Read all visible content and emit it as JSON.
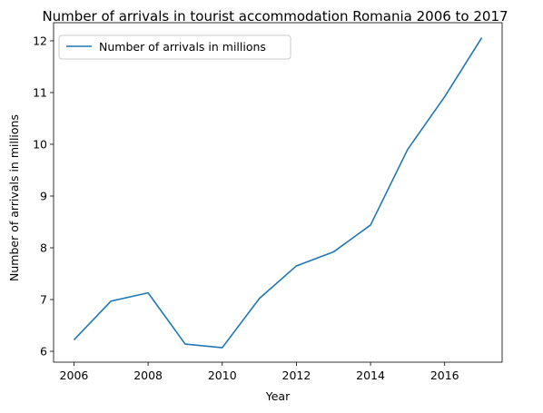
{
  "chart_data": {
    "type": "line",
    "title": "Number of arrivals in tourist accommodation Romania 2006 to 2017",
    "xlabel": "Year",
    "ylabel": "Number of arrivals in millions",
    "x": [
      2006,
      2007,
      2008,
      2009,
      2010,
      2011,
      2012,
      2013,
      2014,
      2015,
      2016,
      2017
    ],
    "series": [
      {
        "name": "Number of arrivals in millions",
        "color": "#1f77b4",
        "values": [
          6.22,
          6.97,
          7.13,
          6.14,
          6.07,
          7.02,
          7.65,
          7.92,
          8.44,
          9.9,
          10.92,
          12.06
        ]
      }
    ],
    "xticks": [
      "2006",
      "2008",
      "2010",
      "2012",
      "2014",
      "2016"
    ],
    "yticks": [
      "6",
      "7",
      "8",
      "9",
      "10",
      "11",
      "12"
    ],
    "xlim": [
      2005.45,
      2017.55
    ],
    "ylim": [
      5.79,
      12.35
    ],
    "grid": false,
    "legend_position": "upper-left"
  }
}
